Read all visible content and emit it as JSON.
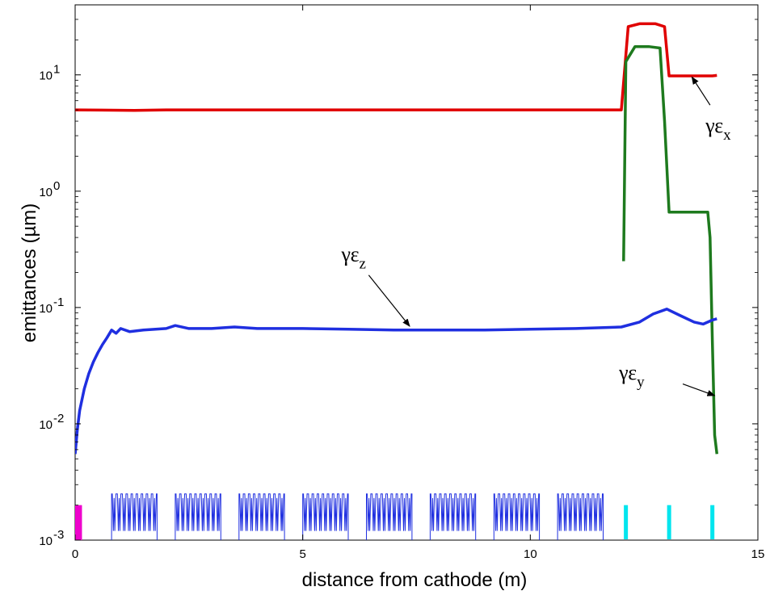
{
  "chart_data": {
    "type": "line",
    "xlabel": "distance from cathode (m)",
    "ylabel": "emittances (µm)",
    "xlim": [
      0,
      15
    ],
    "ylim": [
      0.001,
      40
    ],
    "yscale": "log",
    "grid": false,
    "x_ticks": [
      {
        "value": 0,
        "label": "0"
      },
      {
        "value": 5,
        "label": "5"
      },
      {
        "value": 10,
        "label": "10"
      },
      {
        "value": 15,
        "label": "15"
      }
    ],
    "y_ticks": [
      {
        "value": 0.001,
        "base": "10",
        "exp": "-3"
      },
      {
        "value": 0.01,
        "base": "10",
        "exp": "-2"
      },
      {
        "value": 0.1,
        "base": "10",
        "exp": "-1"
      },
      {
        "value": 1,
        "base": "10",
        "exp": "0"
      },
      {
        "value": 10,
        "base": "10",
        "exp": "1"
      }
    ],
    "series": [
      {
        "color": "#e00000",
        "x": [
          0,
          1.3,
          2,
          4,
          6,
          8,
          10,
          12.0,
          12.15,
          12.4,
          12.75,
          12.95,
          13.05,
          14.0,
          14.1
        ],
        "y": [
          5.0,
          4.95,
          5.0,
          5.0,
          5.0,
          5.0,
          5.0,
          5.0,
          26,
          27.5,
          27.5,
          26,
          9.8,
          9.8,
          9.9
        ]
      },
      {
        "color": "#1e7a1e",
        "x": [
          12.05,
          12.1,
          12.3,
          12.6,
          12.85,
          12.95,
          13.05,
          13.9,
          13.95,
          14.0,
          14.05,
          14.1
        ],
        "y": [
          0.25,
          13,
          17.5,
          17.5,
          17,
          4,
          0.66,
          0.66,
          0.4,
          0.05,
          0.008,
          0.0055
        ]
      },
      {
        "color": "#1f2fe0",
        "x": [
          0,
          0.05,
          0.1,
          0.2,
          0.3,
          0.4,
          0.5,
          0.6,
          0.7,
          0.8,
          0.9,
          1.0,
          1.2,
          1.5,
          2.0,
          2.2,
          2.5,
          3.0,
          3.5,
          4.0,
          5.0,
          6.0,
          7.0,
          8.0,
          9.0,
          10.0,
          11.0,
          12.0,
          12.4,
          12.7,
          13.0,
          13.3,
          13.6,
          13.8,
          14.0,
          14.1
        ],
        "y": [
          0.0055,
          0.009,
          0.013,
          0.02,
          0.027,
          0.034,
          0.041,
          0.048,
          0.055,
          0.064,
          0.06,
          0.066,
          0.062,
          0.064,
          0.066,
          0.07,
          0.066,
          0.066,
          0.068,
          0.066,
          0.066,
          0.065,
          0.064,
          0.064,
          0.064,
          0.065,
          0.066,
          0.068,
          0.075,
          0.088,
          0.097,
          0.085,
          0.075,
          0.072,
          0.078,
          0.08
        ]
      }
    ],
    "lattice_markers": {
      "cavity_groups": [
        {
          "start": 0.8,
          "end": 1.8
        },
        {
          "start": 2.2,
          "end": 3.2
        },
        {
          "start": 3.6,
          "end": 4.6
        },
        {
          "start": 5.0,
          "end": 6.0
        },
        {
          "start": 6.4,
          "end": 7.4
        },
        {
          "start": 7.8,
          "end": 8.8
        },
        {
          "start": 9.2,
          "end": 10.2
        },
        {
          "start": 10.6,
          "end": 11.6
        }
      ],
      "gun_marker": {
        "start": 0.0,
        "end": 0.15,
        "color": "#ee00cc"
      },
      "quads": [
        {
          "x": 12.1
        },
        {
          "x": 13.05
        },
        {
          "x": 14.0
        }
      ],
      "quad_color": "#00e5ee"
    },
    "annotations": [
      {
        "greek": "γε",
        "sub": "x",
        "text_x": 13.85,
        "text_y": 3.2,
        "arrow_from": [
          13.95,
          5.5
        ],
        "arrow_to": [
          13.55,
          9.6
        ]
      },
      {
        "greek": "γε",
        "sub": "z",
        "text_x": 5.85,
        "text_y": 0.25,
        "arrow_from": [
          6.45,
          0.19
        ],
        "arrow_to": [
          7.35,
          0.069
        ]
      },
      {
        "greek": "γε",
        "sub": "y",
        "text_x": 11.95,
        "text_y": 0.024,
        "arrow_from": [
          13.35,
          0.022
        ],
        "arrow_to": [
          14.05,
          0.0175
        ]
      }
    ]
  }
}
